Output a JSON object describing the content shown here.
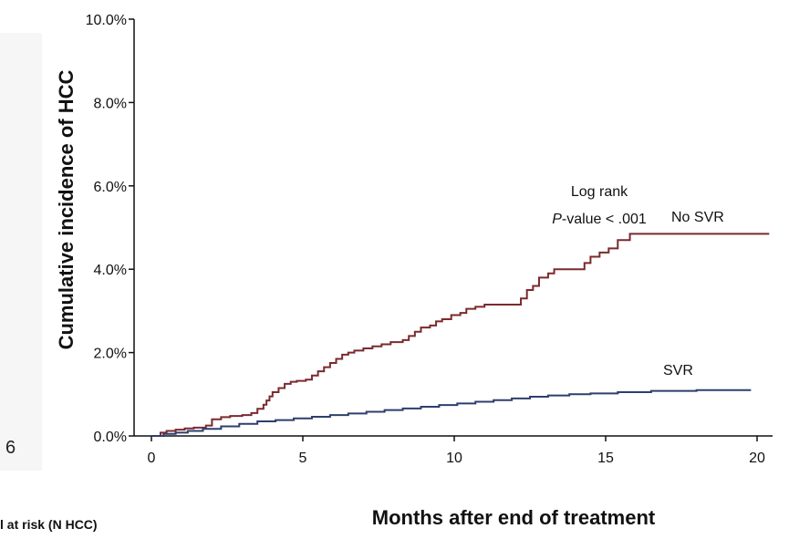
{
  "left_edge_fragments": [
    "6"
  ],
  "risk_table_label": "l at risk (N HCC)",
  "chart_data": {
    "type": "line",
    "title": "",
    "xlabel": "Months after end of treatment",
    "ylabel": "Cumulative incidence of HCC",
    "xlim": [
      0,
      20.5
    ],
    "ylim": [
      0,
      10
    ],
    "x_ticks": [
      "0",
      "5",
      "10",
      "15",
      "20"
    ],
    "x_tick_values": [
      0,
      5,
      10,
      15,
      20
    ],
    "y_ticks": [
      "0.0%",
      "2.0%",
      "4.0%",
      "6.0%",
      "8.0%",
      "10.0%"
    ],
    "y_tick_values": [
      0,
      2,
      4,
      6,
      8,
      10
    ],
    "grid": false,
    "annotation": {
      "line1": "Log rank",
      "line2_italic": "P",
      "line2_rest": "-value < .001"
    },
    "series": [
      {
        "name": "No SVR",
        "color": "#7a2a2e",
        "step": true,
        "points": [
          [
            0,
            0
          ],
          [
            0.3,
            0.08
          ],
          [
            0.5,
            0.12
          ],
          [
            0.8,
            0.15
          ],
          [
            1.1,
            0.18
          ],
          [
            1.4,
            0.2
          ],
          [
            1.8,
            0.25
          ],
          [
            2.0,
            0.4
          ],
          [
            2.3,
            0.45
          ],
          [
            2.6,
            0.48
          ],
          [
            3.0,
            0.5
          ],
          [
            3.3,
            0.55
          ],
          [
            3.5,
            0.65
          ],
          [
            3.7,
            0.75
          ],
          [
            3.8,
            0.85
          ],
          [
            3.9,
            0.95
          ],
          [
            4.0,
            1.05
          ],
          [
            4.2,
            1.15
          ],
          [
            4.4,
            1.25
          ],
          [
            4.6,
            1.3
          ],
          [
            4.8,
            1.32
          ],
          [
            5.1,
            1.35
          ],
          [
            5.3,
            1.45
          ],
          [
            5.5,
            1.55
          ],
          [
            5.7,
            1.65
          ],
          [
            5.9,
            1.75
          ],
          [
            6.1,
            1.85
          ],
          [
            6.3,
            1.95
          ],
          [
            6.5,
            2.0
          ],
          [
            6.7,
            2.05
          ],
          [
            7.0,
            2.1
          ],
          [
            7.3,
            2.15
          ],
          [
            7.6,
            2.2
          ],
          [
            7.9,
            2.25
          ],
          [
            8.3,
            2.3
          ],
          [
            8.5,
            2.4
          ],
          [
            8.7,
            2.5
          ],
          [
            8.9,
            2.6
          ],
          [
            9.2,
            2.65
          ],
          [
            9.4,
            2.75
          ],
          [
            9.6,
            2.8
          ],
          [
            9.9,
            2.9
          ],
          [
            10.2,
            2.95
          ],
          [
            10.4,
            3.05
          ],
          [
            10.7,
            3.1
          ],
          [
            11.0,
            3.15
          ],
          [
            12.0,
            3.15
          ],
          [
            12.2,
            3.3
          ],
          [
            12.4,
            3.5
          ],
          [
            12.6,
            3.6
          ],
          [
            12.8,
            3.8
          ],
          [
            13.1,
            3.9
          ],
          [
            13.3,
            4.0
          ],
          [
            14.0,
            4.0
          ],
          [
            14.3,
            4.15
          ],
          [
            14.5,
            4.3
          ],
          [
            14.8,
            4.4
          ],
          [
            15.1,
            4.5
          ],
          [
            15.4,
            4.7
          ],
          [
            15.8,
            4.85
          ],
          [
            20.4,
            4.85
          ]
        ]
      },
      {
        "name": "SVR",
        "color": "#2e3f6e",
        "step": true,
        "points": [
          [
            0,
            0
          ],
          [
            0.4,
            0.05
          ],
          [
            0.8,
            0.08
          ],
          [
            1.2,
            0.12
          ],
          [
            1.7,
            0.17
          ],
          [
            2.3,
            0.23
          ],
          [
            2.9,
            0.29
          ],
          [
            3.5,
            0.35
          ],
          [
            4.1,
            0.38
          ],
          [
            4.7,
            0.42
          ],
          [
            5.3,
            0.46
          ],
          [
            5.9,
            0.5
          ],
          [
            6.5,
            0.54
          ],
          [
            7.1,
            0.58
          ],
          [
            7.7,
            0.62
          ],
          [
            8.3,
            0.66
          ],
          [
            8.9,
            0.7
          ],
          [
            9.5,
            0.74
          ],
          [
            10.1,
            0.78
          ],
          [
            10.7,
            0.82
          ],
          [
            11.3,
            0.86
          ],
          [
            11.9,
            0.9
          ],
          [
            12.5,
            0.94
          ],
          [
            13.1,
            0.97
          ],
          [
            13.8,
            1.0
          ],
          [
            14.5,
            1.02
          ],
          [
            15.4,
            1.05
          ],
          [
            16.5,
            1.08
          ],
          [
            18.0,
            1.1
          ],
          [
            19.8,
            1.1
          ]
        ]
      }
    ]
  }
}
